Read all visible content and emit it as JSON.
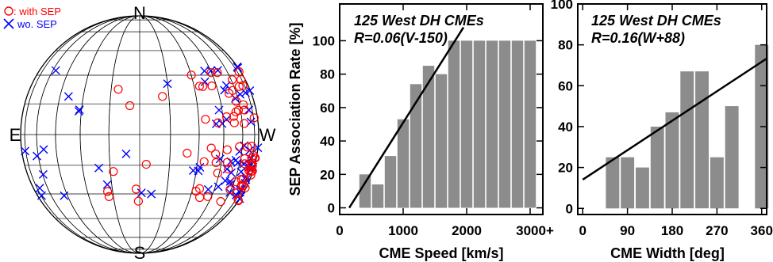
{
  "globe": {
    "north_label": "N",
    "south_label": "S",
    "east_label": "E",
    "west_label": "W",
    "legend": [
      {
        "marker": "circle",
        "label": ": with SEP",
        "color": "#ff0000"
      },
      {
        "marker": "cross",
        "label": "wo. SEP",
        "color": "#0000ff"
      }
    ]
  },
  "chart_data": [
    {
      "type": "bar",
      "title": "125 West DH CMEs",
      "subtitle": "R=0.06(V-150)",
      "xlabel": "CME Speed [km/s]",
      "ylabel": "SEP Association Rate [%]",
      "xlim": [
        0,
        3200
      ],
      "ylim": [
        -4,
        122
      ],
      "xticks": [
        0,
        1000,
        2000,
        3000
      ],
      "xtick_labels": [
        "0",
        "1000",
        "2000",
        "3000+"
      ],
      "yticks": [
        0,
        20,
        40,
        60,
        80,
        100
      ],
      "bin_width": 200,
      "x": [
        400,
        600,
        800,
        1000,
        1200,
        1400,
        1600,
        1800,
        2000,
        2200,
        2400,
        2600,
        2800,
        3000
      ],
      "values": [
        20,
        14,
        31,
        53,
        74,
        85,
        80,
        100,
        100,
        100,
        100,
        100,
        100,
        100
      ],
      "fit": {
        "label": "R=0.06(V-150)",
        "slope": 0.06,
        "x0": 150,
        "x_range": [
          150,
          1950
        ]
      }
    },
    {
      "type": "bar",
      "title": "125 West DH CMEs",
      "subtitle": "R=0.16(W+88)",
      "xlabel": "CME Width [deg]",
      "ylabel": "",
      "xlim": [
        -10,
        370
      ],
      "ylim": [
        -3,
        100
      ],
      "xticks": [
        0,
        90,
        180,
        270,
        360
      ],
      "xtick_labels": [
        "0",
        "90",
        "180",
        "270",
        "360"
      ],
      "yticks": [
        0,
        20,
        40,
        60,
        80,
        100
      ],
      "bin_width": 30,
      "x": [
        60,
        90,
        120,
        150,
        180,
        210,
        240,
        270,
        300,
        360
      ],
      "values": [
        25,
        25,
        20,
        40,
        47,
        67,
        67,
        25,
        50,
        80
      ],
      "fit": {
        "label": "R=0.16(W+88)",
        "slope": 0.16,
        "x0": -88,
        "x_range": [
          0,
          370
        ]
      }
    }
  ]
}
